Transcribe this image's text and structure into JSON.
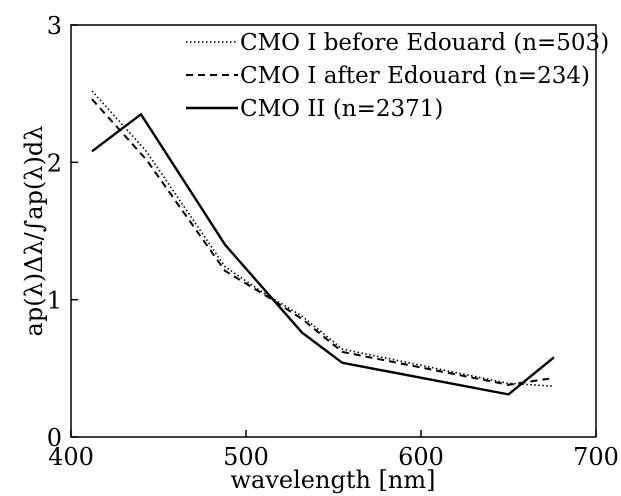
{
  "chart_data": {
    "type": "line",
    "title": "",
    "xlabel": "wavelength [nm]",
    "ylabel": "ap(λ)Δλ/∫ap(λ)dλ",
    "xlim": [
      400,
      700
    ],
    "ylim": [
      0,
      3
    ],
    "xticks": [
      400,
      500,
      600,
      700
    ],
    "yticks": [
      0,
      1,
      2,
      3
    ],
    "grid": false,
    "legend_position": "top-right",
    "series": [
      {
        "name": "CMO I before Edouard (n=503)",
        "style": "dotted",
        "x": [
          412,
          443,
          488,
          510,
          532,
          555,
          650,
          676
        ],
        "y": [
          2.52,
          2.08,
          1.24,
          1.05,
          0.88,
          0.64,
          0.39,
          0.37
        ]
      },
      {
        "name": "CMO I after Edouard (n=234)",
        "style": "dashed",
        "x": [
          412,
          443,
          488,
          510,
          532,
          555,
          650,
          676
        ],
        "y": [
          2.46,
          2.02,
          1.21,
          1.04,
          0.86,
          0.62,
          0.38,
          0.43
        ]
      },
      {
        "name": "CMO II (n=2371)",
        "style": "solid",
        "x": [
          412,
          440,
          488,
          532,
          555,
          650,
          676
        ],
        "y": [
          2.08,
          2.35,
          1.4,
          0.76,
          0.54,
          0.31,
          0.58
        ]
      }
    ]
  }
}
